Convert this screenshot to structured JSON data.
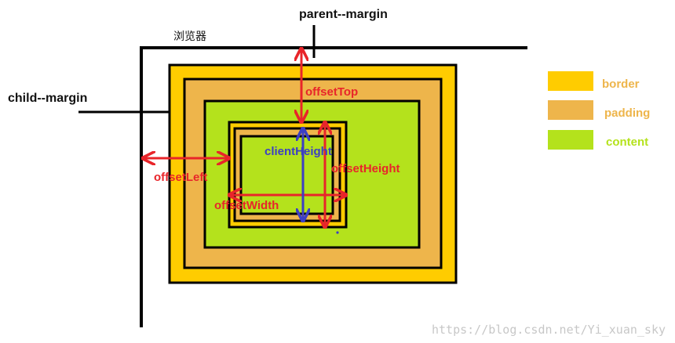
{
  "labels": {
    "parent_margin": "parent--margin",
    "browser": "浏览器",
    "child_margin": "child--margin",
    "offset_top": "offsetTop",
    "offset_left": "offsetLeft",
    "offset_height": "offsetHeight",
    "offset_width": "offsetWidth",
    "client_height": "clientHeight"
  },
  "legend": [
    {
      "label": "border",
      "color": "#ffcc00"
    },
    {
      "label": "padding",
      "color": "#eeb54b"
    },
    {
      "label": "content",
      "color": "#b4e21c"
    }
  ],
  "colors": {
    "border": "#ffcc00",
    "padding": "#eeb54b",
    "content": "#b4e21c",
    "offset_arrows": "#e8252a",
    "client_arrow": "#3c3fc4",
    "frame_lines": "#000000"
  },
  "watermark": "https://blog.csdn.net/Yi_xuan_sky"
}
